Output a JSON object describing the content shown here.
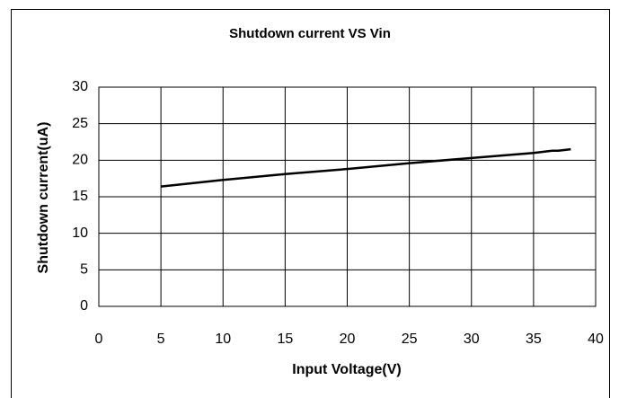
{
  "chart_data": {
    "type": "line",
    "title": "Shutdown current VS Vin",
    "xlabel": "Input Voltage(V)",
    "ylabel": "Shutdown current(uA)",
    "x": [
      5,
      10,
      15,
      20,
      25,
      30,
      35,
      36.5,
      37,
      38
    ],
    "values": [
      16.4,
      17.3,
      18.1,
      18.8,
      19.6,
      20.3,
      21.0,
      21.3,
      21.3,
      21.5
    ],
    "color": "#000000",
    "xlim": [
      0,
      40
    ],
    "xticks": [
      0,
      5,
      10,
      15,
      20,
      25,
      30,
      35,
      40
    ],
    "ylim": [
      0,
      30
    ],
    "yticks": [
      0,
      5,
      10,
      15,
      20,
      25,
      30
    ],
    "grid": true
  }
}
